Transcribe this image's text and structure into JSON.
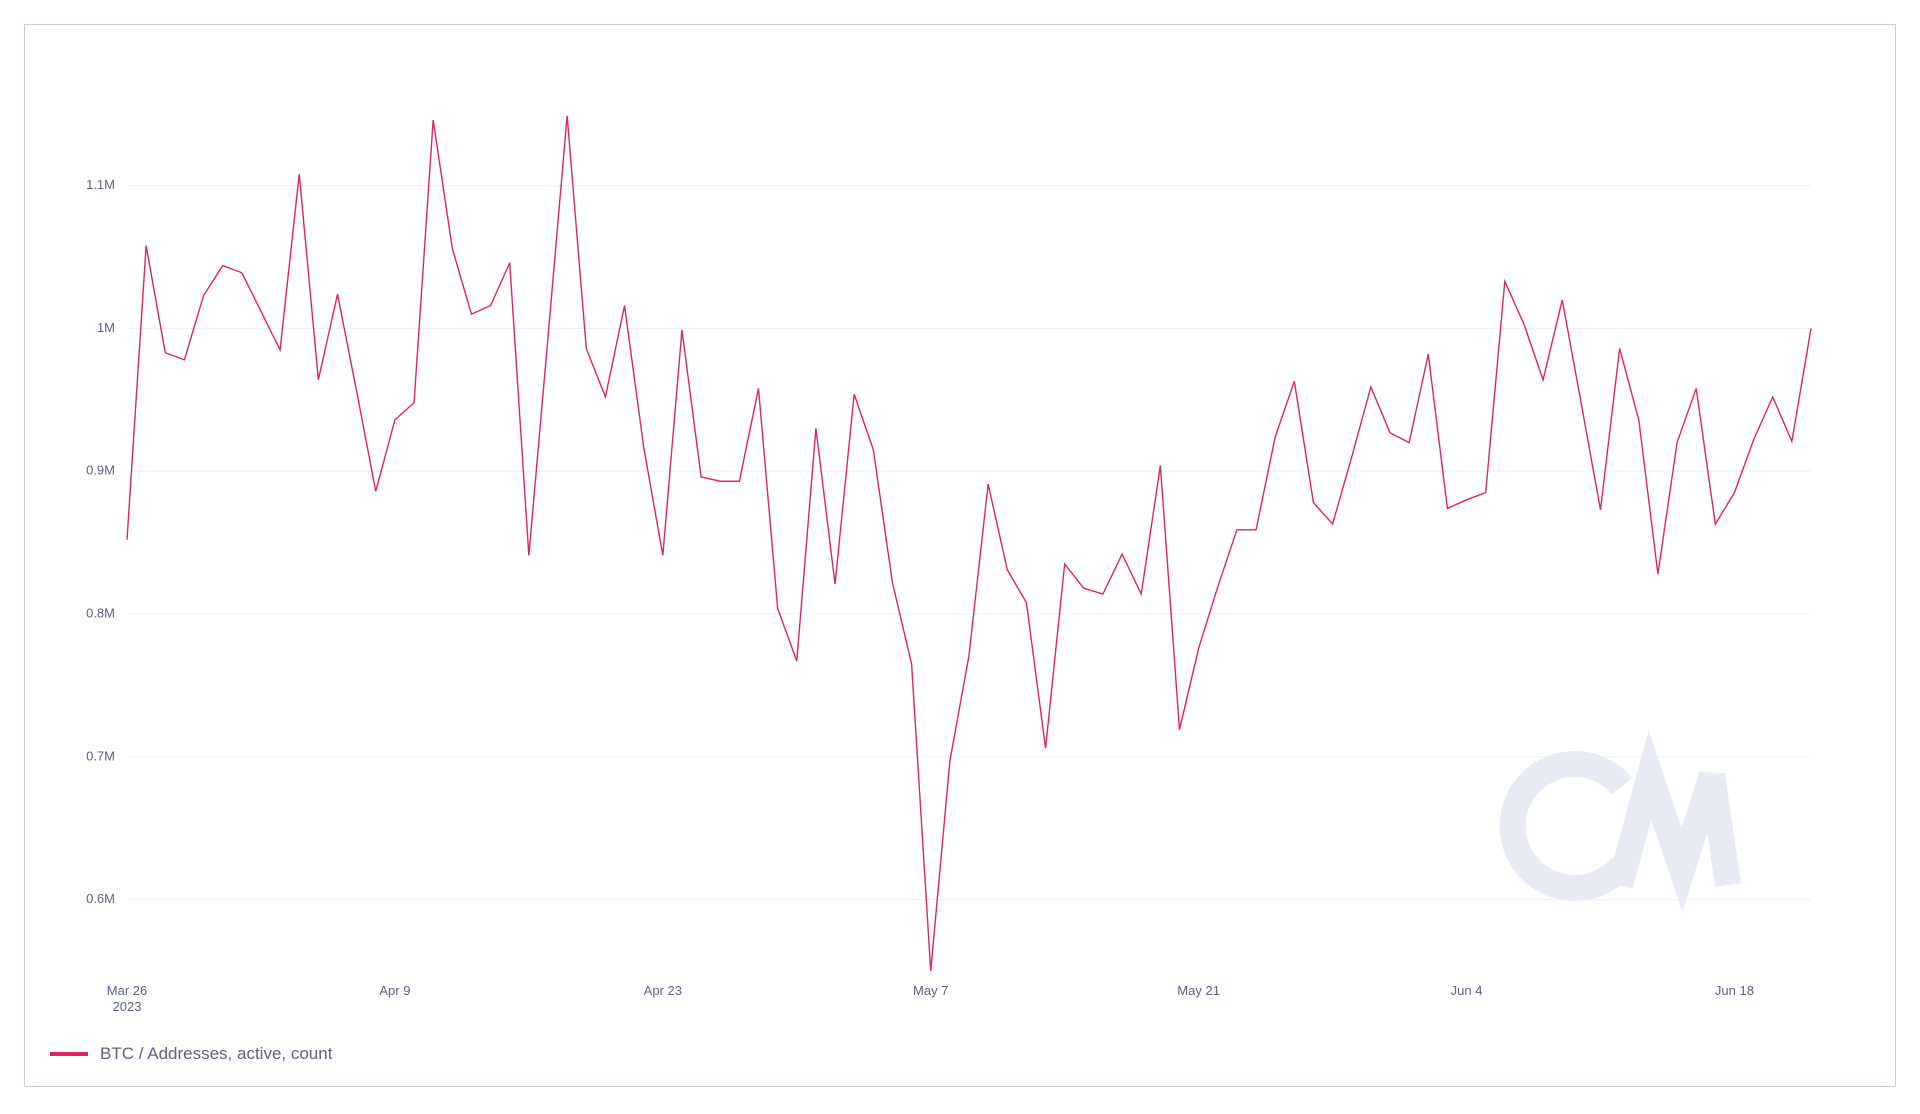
{
  "chart_data": {
    "type": "line",
    "x": [
      "2023-03-26",
      "2023-03-27",
      "2023-03-28",
      "2023-03-29",
      "2023-03-30",
      "2023-03-31",
      "2023-04-01",
      "2023-04-02",
      "2023-04-03",
      "2023-04-04",
      "2023-04-05",
      "2023-04-06",
      "2023-04-07",
      "2023-04-08",
      "2023-04-09",
      "2023-04-10",
      "2023-04-11",
      "2023-04-12",
      "2023-04-13",
      "2023-04-14",
      "2023-04-15",
      "2023-04-16",
      "2023-04-17",
      "2023-04-18",
      "2023-04-19",
      "2023-04-20",
      "2023-04-21",
      "2023-04-22",
      "2023-04-23",
      "2023-04-24",
      "2023-04-25",
      "2023-04-26",
      "2023-04-27",
      "2023-04-28",
      "2023-04-29",
      "2023-04-30",
      "2023-05-01",
      "2023-05-02",
      "2023-05-03",
      "2023-05-04",
      "2023-05-05",
      "2023-05-06",
      "2023-05-07",
      "2023-05-08",
      "2023-05-09",
      "2023-05-10",
      "2023-05-11",
      "2023-05-12",
      "2023-05-13",
      "2023-05-14",
      "2023-05-15",
      "2023-05-16",
      "2023-05-17",
      "2023-05-18",
      "2023-05-19",
      "2023-05-20",
      "2023-05-21",
      "2023-05-22",
      "2023-05-23",
      "2023-05-24",
      "2023-05-25",
      "2023-05-26",
      "2023-05-27",
      "2023-05-28",
      "2023-05-29",
      "2023-05-30",
      "2023-05-31",
      "2023-06-01",
      "2023-06-02",
      "2023-06-03",
      "2023-06-04",
      "2023-06-05",
      "2023-06-06",
      "2023-06-07",
      "2023-06-08",
      "2023-06-09",
      "2023-06-10",
      "2023-06-11",
      "2023-06-12",
      "2023-06-13",
      "2023-06-14",
      "2023-06-15",
      "2023-06-16",
      "2023-06-17",
      "2023-06-18",
      "2023-06-19",
      "2023-06-20",
      "2023-06-21",
      "2023-06-22"
    ],
    "series": [
      {
        "name": "BTC / Addresses, active, count",
        "color": "#e0245e",
        "values": [
          852000,
          1058000,
          983000,
          978000,
          1023000,
          1044000,
          1039000,
          1012000,
          985000,
          1108000,
          964000,
          1024000,
          956000,
          886000,
          936000,
          948000,
          1146000,
          1056000,
          1010000,
          1016000,
          1046000,
          841000,
          994000,
          1149000,
          986000,
          952000,
          1016000,
          917000,
          841000,
          999000,
          896000,
          893000,
          893000,
          958000,
          804000,
          767000,
          930000,
          821000,
          954000,
          915000,
          822000,
          765000,
          550000,
          697000,
          771000,
          891000,
          831000,
          808000,
          706000,
          835000,
          818000,
          814000,
          842000,
          814000,
          904000,
          719000,
          776000,
          819000,
          859000,
          859000,
          924000,
          963000,
          878000,
          863000,
          910000,
          959000,
          927000,
          920000,
          982000,
          874000,
          880000,
          885000,
          1033000,
          1003000,
          964000,
          1020000,
          947000,
          873000,
          986000,
          936000,
          828000,
          920000,
          958000,
          863000,
          885000,
          922000,
          952000,
          921000,
          1000000
        ]
      }
    ],
    "xlim": [
      "2023-03-26",
      "2023-06-22"
    ],
    "xticks": [
      {
        "value": "2023-03-26",
        "label": "Mar 26\n2023"
      },
      {
        "value": "2023-04-09",
        "label": "Apr 9"
      },
      {
        "value": "2023-04-23",
        "label": "Apr 23"
      },
      {
        "value": "2023-05-07",
        "label": "May 7"
      },
      {
        "value": "2023-05-21",
        "label": "May 21"
      },
      {
        "value": "2023-06-04",
        "label": "Jun 4"
      },
      {
        "value": "2023-06-18",
        "label": "Jun 18"
      }
    ],
    "ylim": [
      550000,
      1160000
    ],
    "yticks": [
      {
        "value": 600000,
        "label": "0.6M"
      },
      {
        "value": 700000,
        "label": "0.7M"
      },
      {
        "value": 800000,
        "label": "0.8M"
      },
      {
        "value": 900000,
        "label": "0.9M"
      },
      {
        "value": 1000000,
        "label": "1M"
      },
      {
        "value": 1100000,
        "label": "1.1M"
      }
    ],
    "grid": true
  }
}
